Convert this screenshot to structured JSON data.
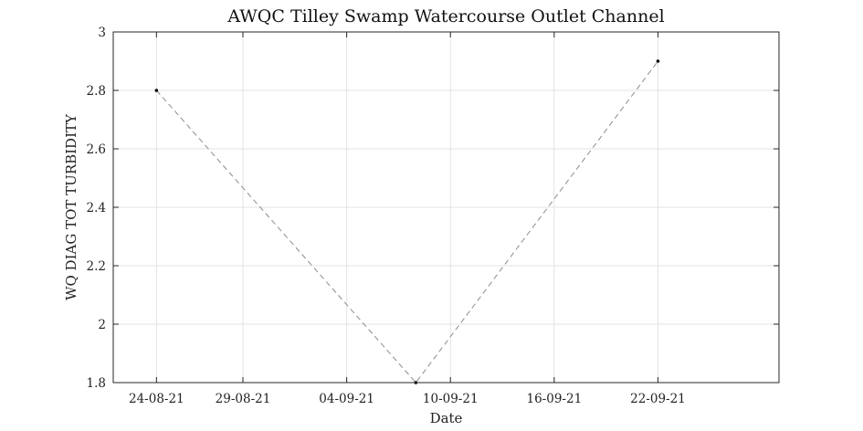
{
  "chart_data": {
    "type": "line",
    "title": "AWQC Tilley Swamp Watercourse Outlet Channel",
    "xlabel": "Date",
    "ylabel": "WQ DIAG TOT TURBIDITY",
    "x_axis_type": "date",
    "x_tick_format": "DD-MM-YY",
    "x_ticks": [
      "2021-08-24",
      "2021-08-29",
      "2021-09-04",
      "2021-09-10",
      "2021-09-16",
      "2021-09-22"
    ],
    "x_tick_labels": [
      "24-08-21",
      "29-08-21",
      "04-09-21",
      "10-09-21",
      "16-09-21",
      "22-09-21"
    ],
    "xlim": [
      "2021-08-21T12:00",
      "2021-09-29T00:00"
    ],
    "y_ticks": [
      1.8,
      2,
      2.2,
      2.4,
      2.6,
      2.8,
      3
    ],
    "y_tick_labels": [
      "1.8",
      "2",
      "2.2",
      "2.4",
      "2.6",
      "2.8",
      "3"
    ],
    "ylim": [
      1.8,
      3
    ],
    "grid": true,
    "series": [
      {
        "x": [
          "2021-08-24",
          "2021-09-08",
          "2021-09-22"
        ],
        "y": [
          2.8,
          1.8,
          2.9
        ],
        "line_style": "dashed",
        "line_color": "#8c8c8c",
        "marker_color": "#000000"
      }
    ]
  }
}
